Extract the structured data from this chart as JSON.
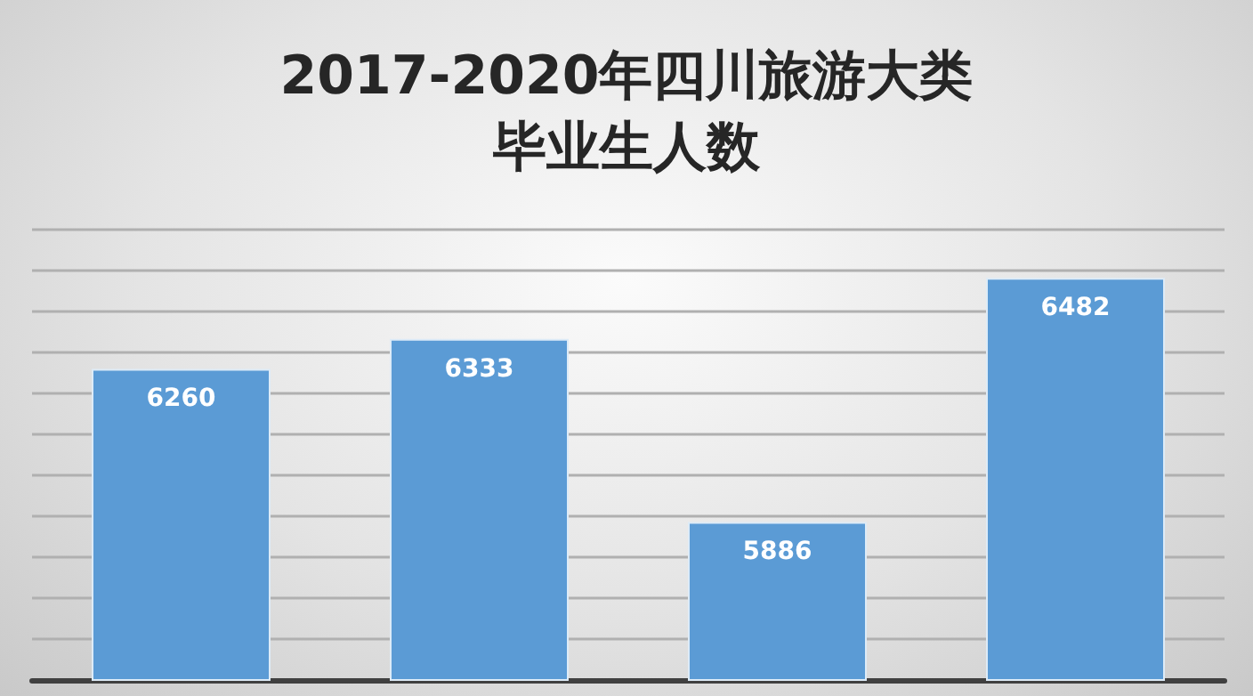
{
  "chart_data": {
    "type": "bar",
    "title": "2017-2020年四川旅游大类毕业生人数",
    "categories": [
      null,
      null,
      null,
      null
    ],
    "values": [
      6260,
      6333,
      5886,
      6482
    ],
    "color": "#5b9bd5",
    "ylim": [
      5500,
      6600
    ],
    "yticks": [
      {
        "value": 5500,
        "label": null
      },
      {
        "value": 5600,
        "label": null
      },
      {
        "value": 5700,
        "label": null
      },
      {
        "value": 5800,
        "label": null
      },
      {
        "value": 5900,
        "label": null
      },
      {
        "value": 6000,
        "label": null
      },
      {
        "value": 6100,
        "label": null
      },
      {
        "value": 6200,
        "label": null
      },
      {
        "value": 6300,
        "label": null
      },
      {
        "value": 6400,
        "label": null
      },
      {
        "value": 6500,
        "label": null
      },
      {
        "value": 6600,
        "label": null
      }
    ],
    "grid": true,
    "data_labels": true
  }
}
